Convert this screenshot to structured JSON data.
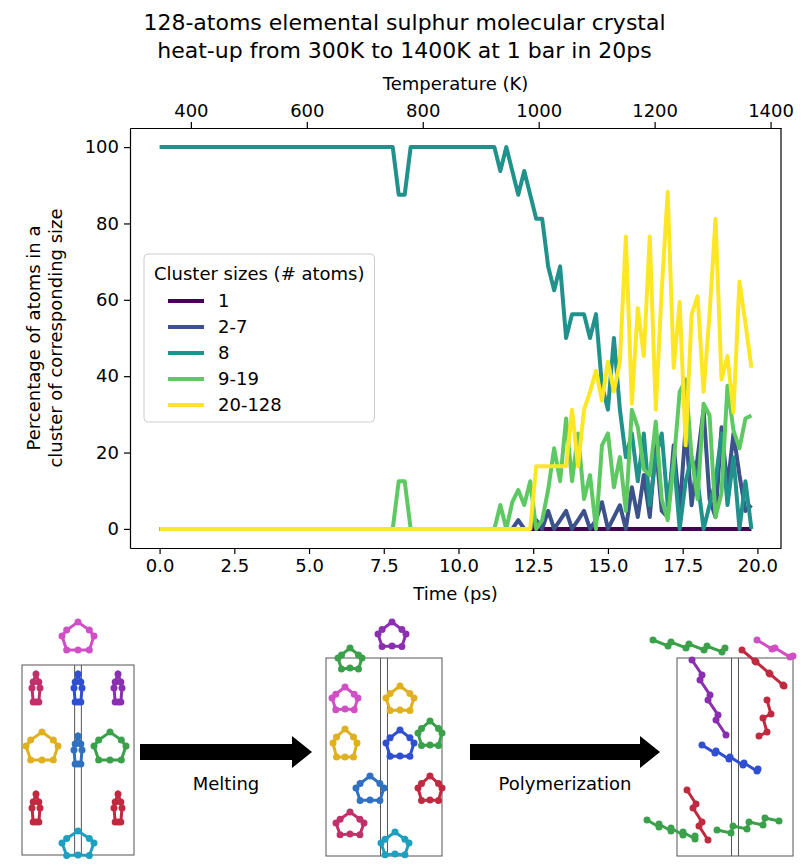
{
  "chart_data": {
    "type": "line",
    "title": "128-atoms elemental sulphur molecular crystal\nheat-up from 300K to 1400K at 1 bar in 20ps",
    "xlabel": "Time (ps)",
    "ylabel": "Percentage of atoms in a cluster of corresponding size",
    "x2label": "Temperature (K)",
    "legend_title": "Cluster sizes (# atoms)",
    "legend": "center left",
    "grid": false,
    "annotations": [
      "Melting",
      "Polymerization"
    ],
    "xlim": [
      -0.99,
      20.79
    ],
    "xticks": [
      {
        "value": 0,
        "label": "0.0"
      },
      2.5,
      {
        "value": 5,
        "label": "5.0"
      },
      7.5,
      {
        "value": 10,
        "label": "10.0"
      },
      12.5,
      {
        "value": 15,
        "label": "15.0"
      },
      17.5,
      {
        "value": 20,
        "label": "20.0"
      }
    ],
    "x2lim": [
      295,
      1418
    ],
    "x2ticks": [
      400,
      600,
      800,
      1000,
      1200,
      1400
    ],
    "ylim": [
      -5,
      105
    ],
    "yticks": [
      0,
      20,
      40,
      60,
      80,
      100
    ],
    "x": [
      0,
      0.2,
      0.4,
      0.6,
      0.8,
      1,
      1.2,
      1.4,
      1.6,
      1.8,
      2,
      2.2,
      2.4,
      2.6,
      2.8,
      3,
      3.2,
      3.4,
      3.6,
      3.8,
      4,
      4.2,
      4.4,
      4.6,
      4.8,
      5,
      5.2,
      5.4,
      5.6,
      5.8,
      6,
      6.2,
      6.4,
      6.6,
      6.8,
      7,
      7.2,
      7.4,
      7.6,
      7.8,
      8,
      8.2,
      8.4,
      8.6,
      8.8,
      9,
      9.2,
      9.4,
      9.6,
      9.8,
      10,
      10.2,
      10.4,
      10.6,
      10.8,
      11,
      11.2,
      11.4,
      11.6,
      11.8,
      12,
      12.2,
      12.4,
      12.6,
      12.8,
      13,
      13.2,
      13.4,
      13.6,
      13.8,
      14,
      14.2,
      14.4,
      14.6,
      14.8,
      15,
      15.2,
      15.4,
      15.6,
      15.8,
      16,
      16.2,
      16.4,
      16.6,
      16.8,
      17,
      17.2,
      17.4,
      17.6,
      17.8,
      18,
      18.2,
      18.4,
      18.6,
      18.8,
      19,
      19.2,
      19.4,
      19.6,
      19.8
    ],
    "series": [
      {
        "name": "1",
        "color": "#440154",
        "values": [
          0,
          0,
          0,
          0,
          0,
          0,
          0,
          0,
          0,
          0,
          0,
          0,
          0,
          0,
          0,
          0,
          0,
          0,
          0,
          0,
          0,
          0,
          0,
          0,
          0,
          0,
          0,
          0,
          0,
          0,
          0,
          0,
          0,
          0,
          0,
          0,
          0,
          0,
          0,
          0,
          0,
          0,
          0,
          0,
          0,
          0,
          0,
          0,
          0,
          0,
          0,
          0,
          0,
          0,
          0,
          0,
          0,
          0,
          0,
          0,
          0,
          0,
          0,
          0,
          0,
          0,
          0,
          0,
          0,
          0,
          0,
          0,
          0,
          0,
          0,
          0,
          0,
          0,
          0,
          0,
          0,
          0,
          0,
          0,
          0,
          0,
          0,
          0,
          0,
          0,
          0,
          0,
          0,
          0,
          0,
          0,
          0,
          0,
          0,
          0
        ]
      },
      {
        "name": "2-7",
        "color": "#3b528b",
        "values": [
          0,
          0,
          0,
          0,
          0,
          0,
          0,
          0,
          0,
          0,
          0,
          0,
          0,
          0,
          0,
          0,
          0,
          0,
          0,
          0,
          0,
          0,
          0,
          0,
          0,
          0,
          0,
          0,
          0,
          0,
          0,
          0,
          0,
          0,
          0,
          0,
          0,
          0,
          0,
          0,
          0,
          0,
          0,
          0,
          0,
          0,
          0,
          0,
          0,
          0,
          0,
          0,
          0,
          0,
          0,
          0,
          0,
          0,
          0,
          0,
          2.3,
          0,
          0,
          2.3,
          0,
          4.7,
          0,
          2.3,
          4.7,
          0,
          2.3,
          4.7,
          0,
          2.3,
          7,
          0,
          3.1,
          6.2,
          0,
          10.9,
          3.1,
          14.1,
          3.1,
          21.9,
          4.7,
          3.1,
          21.9,
          4.7,
          26.6,
          6.2,
          18.8,
          31.2,
          7.8,
          3.1,
          26.6,
          10.9,
          25,
          14.1,
          4.7,
          6.2
        ]
      },
      {
        "name": "8",
        "color": "#21918c",
        "values": [
          100,
          100,
          100,
          100,
          100,
          100,
          100,
          100,
          100,
          100,
          100,
          100,
          100,
          100,
          100,
          100,
          100,
          100,
          100,
          100,
          100,
          100,
          100,
          100,
          100,
          100,
          100,
          100,
          100,
          100,
          100,
          100,
          100,
          100,
          100,
          100,
          100,
          100,
          100,
          100,
          87.5,
          87.5,
          100,
          100,
          100,
          100,
          100,
          100,
          100,
          100,
          100,
          100,
          100,
          100,
          100,
          100,
          100,
          93.75,
          100,
          93.75,
          87.5,
          93.75,
          87.5,
          81.25,
          81.25,
          68.75,
          62.5,
          68.75,
          50,
          56.25,
          56.25,
          56.25,
          50,
          56.25,
          37.5,
          31.25,
          50,
          31.25,
          18.75,
          25,
          12.5,
          25,
          6.25,
          18.75,
          25,
          6.25,
          18.75,
          0,
          12.5,
          18.75,
          12.5,
          0,
          6.25,
          12.5,
          25,
          6.25,
          18.75,
          0,
          12.5,
          0
        ]
      },
      {
        "name": "9-19",
        "color": "#5ec962",
        "values": [
          0,
          0,
          0,
          0,
          0,
          0,
          0,
          0,
          0,
          0,
          0,
          0,
          0,
          0,
          0,
          0,
          0,
          0,
          0,
          0,
          0,
          0,
          0,
          0,
          0,
          0,
          0,
          0,
          0,
          0,
          0,
          0,
          0,
          0,
          0,
          0,
          0,
          0,
          0,
          0,
          12.5,
          12.5,
          0,
          0,
          0,
          0,
          0,
          0,
          0,
          0,
          0,
          0,
          0,
          0,
          0,
          0,
          0,
          6.25,
          0,
          7,
          10.2,
          6.25,
          12.5,
          0,
          2.3,
          10.2,
          21.1,
          12.5,
          28.9,
          12.5,
          25,
          7.8,
          14.1,
          0,
          21.9,
          25,
          10.9,
          18.8,
          4.7,
          31.2,
          26.6,
          15.6,
          14.1,
          28.1,
          7.8,
          2.3,
          17.2,
          35.9,
          39.1,
          18.8,
          7.8,
          32.8,
          29.7,
          3.1,
          9.4,
          37.5,
          25.8,
          21.1,
          28.9,
          29.7
        ]
      },
      {
        "name": "20-128",
        "color": "#fde725",
        "values": [
          0,
          0,
          0,
          0,
          0,
          0,
          0,
          0,
          0,
          0,
          0,
          0,
          0,
          0,
          0,
          0,
          0,
          0,
          0,
          0,
          0,
          0,
          0,
          0,
          0,
          0,
          0,
          0,
          0,
          0,
          0,
          0,
          0,
          0,
          0,
          0,
          0,
          0,
          0,
          0,
          0,
          0,
          0,
          0,
          0,
          0,
          0,
          0,
          0,
          0,
          0,
          0,
          0,
          0,
          0,
          0,
          0,
          0,
          0,
          0,
          0,
          0,
          0,
          16.4,
          16.4,
          16.4,
          16.4,
          16.4,
          16.4,
          31.2,
          16.4,
          31.2,
          35.9,
          41.4,
          33.6,
          43.8,
          36,
          43.8,
          76.6,
          32.8,
          57.8,
          45.3,
          76.6,
          31.2,
          62.5,
          88.3,
          42.2,
          59.4,
          21.9,
          56.2,
          60.9,
          35.9,
          56.2,
          81.2,
          39.1,
          45.3,
          30.5,
          64.8,
          53.9,
          42.2
        ]
      }
    ]
  }
}
